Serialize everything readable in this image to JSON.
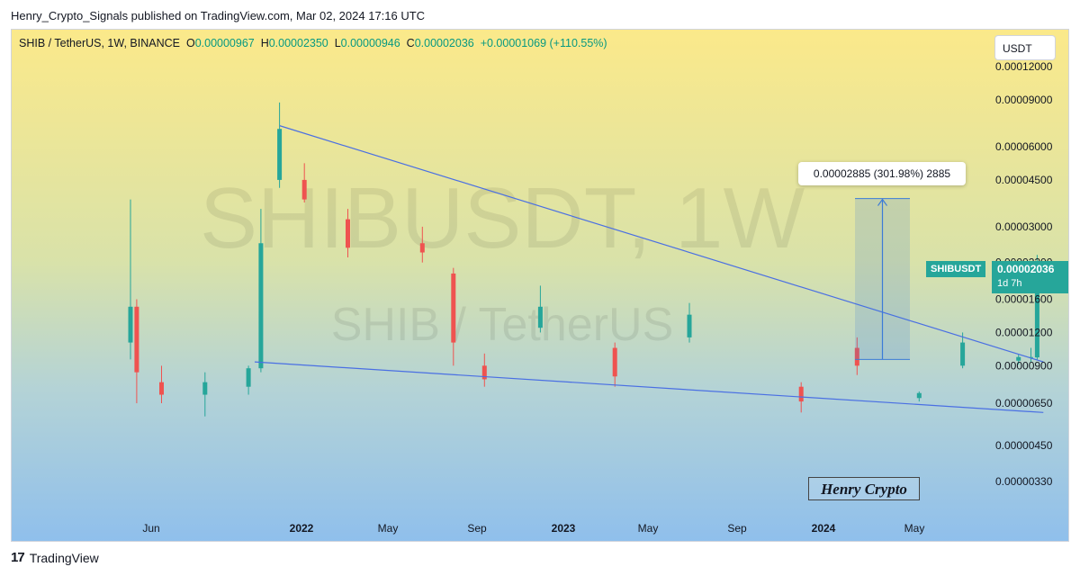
{
  "header": {
    "text": "Henry_Crypto_Signals published on TradingView.com, Mar 02, 2024 17:16 UTC"
  },
  "legend": {
    "symbol": "SHIB / TetherUS, 1W, BINANCE",
    "o_label": "O",
    "o": "0.00000967",
    "h_label": "H",
    "h": "0.00002350",
    "l_label": "L",
    "l": "0.00000946",
    "c_label": "C",
    "c": "0.00002036",
    "change": "+0.00001069 (+110.55%)"
  },
  "currency_button": "USDT",
  "watermark": {
    "main": "SHIBUSDT, 1W",
    "sub": "SHIB / TetherUS"
  },
  "measure": {
    "label": "0.00002885 (301.98%) 2885"
  },
  "price_tag": {
    "symbol": "SHIBUSDT",
    "price": "0.00002036",
    "countdown": "1d 7h"
  },
  "author_box": "Henry Crypto",
  "footer": {
    "brand": "TradingView"
  },
  "colors": {
    "up": "#26a69a",
    "down": "#ef5350",
    "trendline": "#4a6fe3",
    "measure": "#3b7bd8"
  },
  "chart_data": {
    "type": "candlestick",
    "title": "",
    "timeframe": "1W",
    "scale": "log",
    "y_ticks": [
      "0.00012000",
      "0.00009000",
      "0.00006000",
      "0.00004500",
      "0.00003000",
      "0.00002200",
      "0.00001600",
      "0.00001200",
      "0.00000900",
      "0.00000650",
      "0.00000450",
      "0.00000330"
    ],
    "x_ticks": [
      "Jun",
      "2022",
      "May",
      "Sep",
      "2023",
      "May",
      "Sep",
      "2024",
      "May"
    ],
    "series": [
      {
        "name": "SHIBUSDT",
        "points": [
          {
            "t": "2021-05-10",
            "o": 1.1e-05,
            "h": 3.8e-05,
            "l": 9.5e-06,
            "c": 1.5e-05
          },
          {
            "t": "2021-05-17",
            "o": 1.5e-05,
            "h": 1.6e-05,
            "l": 6.5e-06,
            "c": 8.5e-06
          },
          {
            "t": "2021-06-14",
            "o": 7.8e-06,
            "h": 9e-06,
            "l": 6.5e-06,
            "c": 7e-06
          },
          {
            "t": "2021-08-02",
            "o": 7e-06,
            "h": 8.5e-06,
            "l": 5.8e-06,
            "c": 7.8e-06
          },
          {
            "t": "2021-09-20",
            "o": 7.5e-06,
            "h": 9e-06,
            "l": 7e-06,
            "c": 8.8e-06
          },
          {
            "t": "2021-10-04",
            "o": 8.8e-06,
            "h": 3.5e-05,
            "l": 8.5e-06,
            "c": 2.6e-05
          },
          {
            "t": "2021-10-25",
            "o": 4.5e-05,
            "h": 8.8e-05,
            "l": 4.2e-05,
            "c": 7e-05
          },
          {
            "t": "2021-11-22",
            "o": 4.5e-05,
            "h": 5.2e-05,
            "l": 3.7e-05,
            "c": 3.8e-05
          },
          {
            "t": "2022-01-10",
            "o": 3.2e-05,
            "h": 3.5e-05,
            "l": 2.3e-05,
            "c": 2.5e-05
          },
          {
            "t": "2022-04-04",
            "o": 2.6e-05,
            "h": 3e-05,
            "l": 2.2e-05,
            "c": 2.4e-05
          },
          {
            "t": "2022-05-09",
            "o": 2e-05,
            "h": 2.1e-05,
            "l": 9e-06,
            "c": 1.1e-05
          },
          {
            "t": "2022-06-13",
            "o": 9e-06,
            "h": 1e-05,
            "l": 7.5e-06,
            "c": 8e-06
          },
          {
            "t": "2022-08-15",
            "o": 1.25e-05,
            "h": 1.8e-05,
            "l": 1.2e-05,
            "c": 1.5e-05
          },
          {
            "t": "2022-11-07",
            "o": 1.05e-05,
            "h": 1.1e-05,
            "l": 7.5e-06,
            "c": 8.2e-06
          },
          {
            "t": "2023-01-30",
            "o": 1.15e-05,
            "h": 1.55e-05,
            "l": 1.1e-05,
            "c": 1.4e-05
          },
          {
            "t": "2023-06-05",
            "o": 7.5e-06,
            "h": 7.8e-06,
            "l": 6e-06,
            "c": 6.6e-06
          },
          {
            "t": "2023-08-07",
            "o": 1.05e-05,
            "h": 1.15e-05,
            "l": 8.3e-06,
            "c": 9e-06
          },
          {
            "t": "2023-10-16",
            "o": 6.8e-06,
            "h": 7.2e-06,
            "l": 6.6e-06,
            "c": 7.1e-06
          },
          {
            "t": "2023-12-04",
            "o": 9e-06,
            "h": 1.2e-05,
            "l": 8.8e-06,
            "c": 1.1e-05
          },
          {
            "t": "2024-02-05",
            "o": 9.4e-06,
            "h": 9.9e-06,
            "l": 9.1e-06,
            "c": 9.7e-06
          },
          {
            "t": "2024-02-19",
            "o": 9.7e-06,
            "h": 1.05e-05,
            "l": 9.3e-06,
            "c": 9.7e-06
          },
          {
            "t": "2024-02-26",
            "o": 9.67e-06,
            "h": 2.35e-05,
            "l": 9.46e-06,
            "c": 2.036e-05
          }
        ]
      }
    ],
    "trendlines": [
      {
        "name": "upper",
        "from": {
          "t": "2021-10-25",
          "y": 7.2e-05
        },
        "to": {
          "t": "2024-03-04",
          "y": 9.3e-06
        }
      },
      {
        "name": "lower",
        "from": {
          "t": "2021-09-27",
          "y": 9.3e-06
        },
        "to": {
          "t": "2024-03-04",
          "y": 6e-06
        }
      }
    ],
    "measurement": {
      "from": 9.5e-06,
      "to": 3.83e-05,
      "change": "0.00002885",
      "percent": "301.98%",
      "ticks": "2885"
    },
    "grid": false,
    "legend_position": "top-left"
  }
}
